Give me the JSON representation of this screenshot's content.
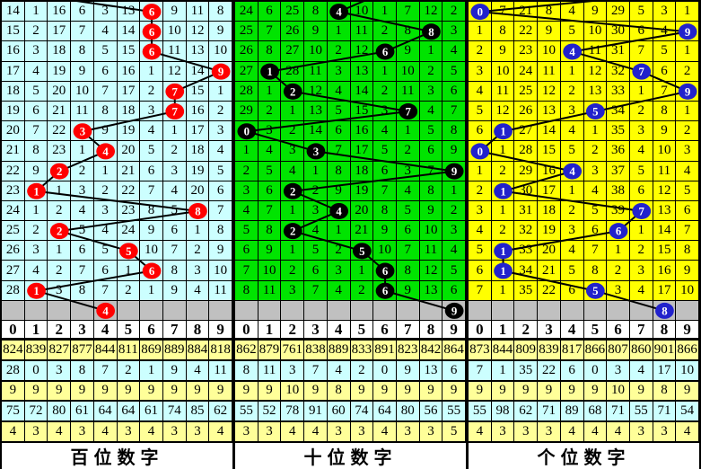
{
  "column_digits": [
    "0",
    "1",
    "2",
    "3",
    "4",
    "5",
    "6",
    "7",
    "8",
    "9"
  ],
  "pending_row_color": "#c0c0c0",
  "stats_row_colors": [
    "#ffff99",
    "#ccffff",
    "#ffff99",
    "#ccffff",
    "#ffff99"
  ],
  "line_color": "#000000",
  "panels": [
    {
      "id": "hundreds",
      "footer_label": "百位数字",
      "bg_color": "#ccffff",
      "ball_color": "#ff0000",
      "entry_col": 0,
      "rows": [
        {
          "cells": [
            "14",
            "1",
            "16",
            "6",
            "3",
            "13",
            "",
            "9",
            "11",
            "8"
          ],
          "ball": 6
        },
        {
          "cells": [
            "15",
            "2",
            "17",
            "7",
            "4",
            "14",
            "",
            "10",
            "12",
            "9"
          ],
          "ball": 6
        },
        {
          "cells": [
            "16",
            "3",
            "18",
            "8",
            "5",
            "15",
            "",
            "11",
            "13",
            "10"
          ],
          "ball": 6
        },
        {
          "cells": [
            "17",
            "4",
            "19",
            "9",
            "6",
            "16",
            "1",
            "12",
            "14",
            ""
          ],
          "ball": 9
        },
        {
          "cells": [
            "18",
            "5",
            "20",
            "10",
            "7",
            "17",
            "2",
            "",
            "15",
            "1"
          ],
          "ball": 7
        },
        {
          "cells": [
            "19",
            "6",
            "21",
            "11",
            "8",
            "18",
            "3",
            "",
            "16",
            "2"
          ],
          "ball": 7
        },
        {
          "cells": [
            "20",
            "7",
            "22",
            "",
            "9",
            "19",
            "4",
            "1",
            "17",
            "3"
          ],
          "ball": 3
        },
        {
          "cells": [
            "21",
            "8",
            "23",
            "1",
            "",
            "20",
            "5",
            "2",
            "18",
            "4"
          ],
          "ball": 4
        },
        {
          "cells": [
            "22",
            "9",
            "",
            "2",
            "1",
            "21",
            "6",
            "3",
            "19",
            "5"
          ],
          "ball": 2
        },
        {
          "cells": [
            "23",
            "",
            "1",
            "3",
            "2",
            "22",
            "7",
            "4",
            "20",
            "6"
          ],
          "ball": 1
        },
        {
          "cells": [
            "24",
            "1",
            "2",
            "4",
            "3",
            "23",
            "8",
            "5",
            "",
            "7"
          ],
          "ball": 8
        },
        {
          "cells": [
            "25",
            "2",
            "",
            "5",
            "4",
            "24",
            "9",
            "6",
            "1",
            "8"
          ],
          "ball": 2
        },
        {
          "cells": [
            "26",
            "3",
            "1",
            "6",
            "5",
            "",
            "10",
            "7",
            "2",
            "9"
          ],
          "ball": 5
        },
        {
          "cells": [
            "27",
            "4",
            "2",
            "7",
            "6",
            "1",
            "",
            "8",
            "3",
            "10"
          ],
          "ball": 6
        },
        {
          "cells": [
            "28",
            "",
            "3",
            "8",
            "7",
            "2",
            "1",
            "9",
            "4",
            "11"
          ],
          "ball": 1
        }
      ],
      "gray_ball": 4,
      "stats": [
        [
          "824",
          "839",
          "827",
          "877",
          "844",
          "811",
          "869",
          "889",
          "884",
          "818"
        ],
        [
          "28",
          "0",
          "3",
          "8",
          "7",
          "2",
          "1",
          "9",
          "4",
          "11"
        ],
        [
          "9",
          "9",
          "9",
          "9",
          "9",
          "9",
          "9",
          "9",
          "9",
          "9"
        ],
        [
          "75",
          "72",
          "80",
          "61",
          "64",
          "64",
          "61",
          "74",
          "85",
          "62"
        ],
        [
          "4",
          "3",
          "4",
          "3",
          "4",
          "3",
          "4",
          "3",
          "3",
          "4"
        ]
      ]
    },
    {
      "id": "tens",
      "footer_label": "十位数字",
      "bg_color": "#00e400",
      "ball_color": "#000000",
      "entry_col": 6,
      "rows": [
        {
          "cells": [
            "24",
            "6",
            "25",
            "8",
            "",
            "10",
            "1",
            "7",
            "12",
            "2"
          ],
          "ball": 4
        },
        {
          "cells": [
            "25",
            "7",
            "26",
            "9",
            "1",
            "11",
            "2",
            "8",
            "",
            "3"
          ],
          "ball": 8
        },
        {
          "cells": [
            "26",
            "8",
            "27",
            "10",
            "2",
            "12",
            "",
            "9",
            "1",
            "4"
          ],
          "ball": 6
        },
        {
          "cells": [
            "27",
            "",
            "28",
            "11",
            "3",
            "13",
            "1",
            "10",
            "2",
            "5"
          ],
          "ball": 1
        },
        {
          "cells": [
            "28",
            "1",
            "",
            "12",
            "4",
            "14",
            "2",
            "11",
            "3",
            "6"
          ],
          "ball": 2
        },
        {
          "cells": [
            "29",
            "2",
            "1",
            "13",
            "5",
            "15",
            "3",
            "",
            "4",
            "7"
          ],
          "ball": 7
        },
        {
          "cells": [
            "",
            "3",
            "2",
            "14",
            "6",
            "16",
            "4",
            "1",
            "5",
            "8"
          ],
          "ball": 0
        },
        {
          "cells": [
            "1",
            "4",
            "3",
            "",
            "7",
            "17",
            "5",
            "2",
            "6",
            "9"
          ],
          "ball": 3
        },
        {
          "cells": [
            "2",
            "5",
            "4",
            "1",
            "8",
            "18",
            "6",
            "3",
            "7",
            ""
          ],
          "ball": 9
        },
        {
          "cells": [
            "3",
            "6",
            "",
            "2",
            "9",
            "19",
            "7",
            "4",
            "8",
            "1"
          ],
          "ball": 2
        },
        {
          "cells": [
            "4",
            "7",
            "1",
            "3",
            "",
            "20",
            "8",
            "5",
            "9",
            "2"
          ],
          "ball": 4
        },
        {
          "cells": [
            "5",
            "8",
            "",
            "4",
            "1",
            "21",
            "9",
            "6",
            "10",
            "3"
          ],
          "ball": 2
        },
        {
          "cells": [
            "6",
            "9",
            "1",
            "5",
            "2",
            "",
            "10",
            "7",
            "11",
            "4"
          ],
          "ball": 5
        },
        {
          "cells": [
            "7",
            "10",
            "2",
            "6",
            "3",
            "1",
            "",
            "8",
            "12",
            "5"
          ],
          "ball": 6
        },
        {
          "cells": [
            "8",
            "11",
            "3",
            "7",
            "4",
            "2",
            "",
            "9",
            "13",
            "6"
          ],
          "ball": 6
        }
      ],
      "gray_ball": 9,
      "stats": [
        [
          "862",
          "879",
          "761",
          "838",
          "889",
          "833",
          "891",
          "823",
          "842",
          "864"
        ],
        [
          "8",
          "11",
          "3",
          "7",
          "4",
          "2",
          "0",
          "9",
          "13",
          "6"
        ],
        [
          "9",
          "9",
          "10",
          "9",
          "8",
          "9",
          "9",
          "9",
          "9",
          "9"
        ],
        [
          "55",
          "52",
          "78",
          "91",
          "60",
          "74",
          "64",
          "80",
          "56",
          "55"
        ],
        [
          "3",
          "3",
          "4",
          "4",
          "3",
          "3",
          "4",
          "3",
          "3",
          "5"
        ]
      ]
    },
    {
      "id": "units",
      "footer_label": "个位数字",
      "bg_color": "#ffff00",
      "ball_color": "#2222cc",
      "entry_col": 9,
      "rows": [
        {
          "cells": [
            "",
            "7",
            "21",
            "8",
            "4",
            "9",
            "29",
            "5",
            "3",
            "1"
          ],
          "ball": 0
        },
        {
          "cells": [
            "1",
            "8",
            "22",
            "9",
            "5",
            "10",
            "30",
            "6",
            "4",
            ""
          ],
          "ball": 9
        },
        {
          "cells": [
            "2",
            "9",
            "23",
            "10",
            "",
            "11",
            "31",
            "7",
            "5",
            "1"
          ],
          "ball": 4
        },
        {
          "cells": [
            "3",
            "10",
            "24",
            "11",
            "1",
            "12",
            "32",
            "",
            "6",
            "2"
          ],
          "ball": 7
        },
        {
          "cells": [
            "4",
            "11",
            "25",
            "12",
            "2",
            "13",
            "33",
            "1",
            "7",
            ""
          ],
          "ball": 9
        },
        {
          "cells": [
            "5",
            "12",
            "26",
            "13",
            "3",
            "",
            "34",
            "2",
            "8",
            "1"
          ],
          "ball": 5
        },
        {
          "cells": [
            "6",
            "",
            "27",
            "14",
            "4",
            "1",
            "35",
            "3",
            "9",
            "2"
          ],
          "ball": 1
        },
        {
          "cells": [
            "",
            "1",
            "28",
            "15",
            "5",
            "2",
            "36",
            "4",
            "10",
            "3"
          ],
          "ball": 0
        },
        {
          "cells": [
            "1",
            "2",
            "29",
            "16",
            "",
            "3",
            "37",
            "5",
            "11",
            "4"
          ],
          "ball": 4
        },
        {
          "cells": [
            "2",
            "",
            "30",
            "17",
            "1",
            "4",
            "38",
            "6",
            "12",
            "5"
          ],
          "ball": 1
        },
        {
          "cells": [
            "3",
            "1",
            "31",
            "18",
            "2",
            "5",
            "39",
            "",
            "13",
            "6"
          ],
          "ball": 7
        },
        {
          "cells": [
            "4",
            "2",
            "32",
            "19",
            "3",
            "6",
            "",
            "1",
            "14",
            "7"
          ],
          "ball": 6
        },
        {
          "cells": [
            "5",
            "",
            "33",
            "20",
            "4",
            "7",
            "1",
            "2",
            "15",
            "8"
          ],
          "ball": 1
        },
        {
          "cells": [
            "6",
            "",
            "34",
            "21",
            "5",
            "8",
            "2",
            "3",
            "16",
            "9"
          ],
          "ball": 1
        },
        {
          "cells": [
            "7",
            "1",
            "35",
            "22",
            "6",
            "",
            "3",
            "4",
            "17",
            "10"
          ],
          "ball": 5
        }
      ],
      "gray_ball": 8,
      "stats": [
        [
          "873",
          "844",
          "809",
          "839",
          "817",
          "866",
          "807",
          "860",
          "901",
          "866"
        ],
        [
          "7",
          "1",
          "35",
          "22",
          "6",
          "0",
          "3",
          "4",
          "17",
          "10"
        ],
        [
          "9",
          "9",
          "9",
          "9",
          "9",
          "9",
          "10",
          "9",
          "8",
          "9"
        ],
        [
          "55",
          "98",
          "62",
          "71",
          "89",
          "68",
          "71",
          "55",
          "71",
          "54"
        ],
        [
          "4",
          "3",
          "3",
          "3",
          "4",
          "4",
          "4",
          "3",
          "3",
          "4"
        ]
      ]
    }
  ],
  "chart_data": {
    "type": "line",
    "title": "",
    "xlabel": "",
    "ylabel": "",
    "ylim": [
      0,
      9
    ],
    "x": [
      1,
      2,
      3,
      4,
      5,
      6,
      7,
      8,
      9,
      10,
      11,
      12,
      13,
      14,
      15,
      16
    ],
    "series": [
      {
        "name": "百位数字",
        "values": [
          6,
          6,
          6,
          9,
          7,
          7,
          3,
          4,
          2,
          1,
          8,
          2,
          5,
          6,
          1,
          4
        ]
      },
      {
        "name": "十位数字",
        "values": [
          4,
          8,
          6,
          1,
          2,
          7,
          0,
          3,
          9,
          2,
          4,
          2,
          5,
          6,
          6,
          9
        ]
      },
      {
        "name": "个位数字",
        "values": [
          0,
          9,
          4,
          7,
          9,
          5,
          1,
          0,
          4,
          1,
          7,
          6,
          1,
          1,
          5,
          8
        ]
      }
    ],
    "legend_position": "bottom",
    "grid": true
  }
}
